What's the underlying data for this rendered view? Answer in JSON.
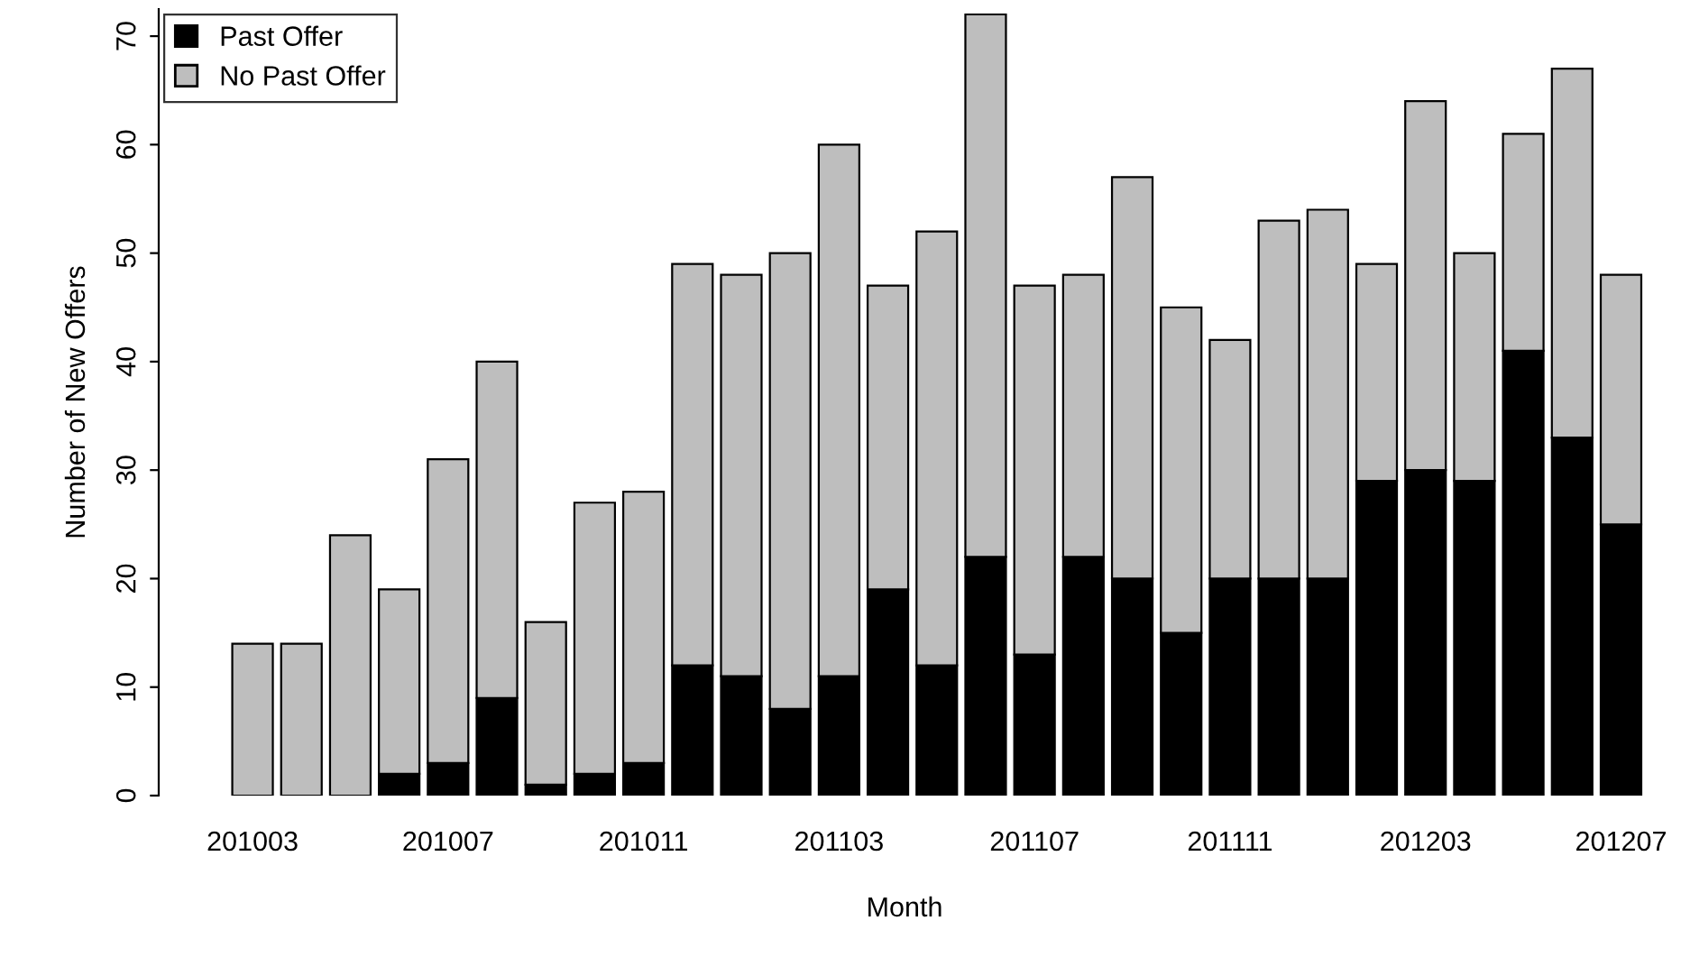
{
  "chart_data": {
    "type": "bar",
    "stacked": true,
    "xlabel": "Month",
    "ylabel": "Number of New Offers",
    "categories": [
      "201003",
      null,
      null,
      null,
      "201007",
      null,
      null,
      null,
      "201011",
      null,
      null,
      null,
      "201103",
      null,
      null,
      null,
      "201107",
      null,
      null,
      null,
      "201111",
      null,
      null,
      null,
      "201203",
      null,
      null,
      null,
      "201207"
    ],
    "series": [
      {
        "name": "Past Offer",
        "color": "#000000",
        "values": [
          0,
          0,
          0,
          2,
          3,
          9,
          1,
          2,
          3,
          12,
          11,
          8,
          11,
          19,
          12,
          22,
          13,
          22,
          20,
          15,
          20,
          20,
          20,
          29,
          30,
          29,
          41,
          33,
          25
        ]
      },
      {
        "name": "No Past Offer",
        "color": "#bebebe",
        "values": [
          14,
          14,
          24,
          17,
          28,
          31,
          15,
          25,
          25,
          37,
          37,
          42,
          49,
          28,
          40,
          50,
          34,
          26,
          37,
          30,
          22,
          33,
          34,
          20,
          34,
          21,
          20,
          34,
          23
        ]
      }
    ],
    "ylim": [
      0,
      72.5
    ],
    "yticks": [
      0,
      10,
      20,
      30,
      40,
      50,
      60,
      70
    ],
    "grid": false,
    "legend": "top left"
  }
}
